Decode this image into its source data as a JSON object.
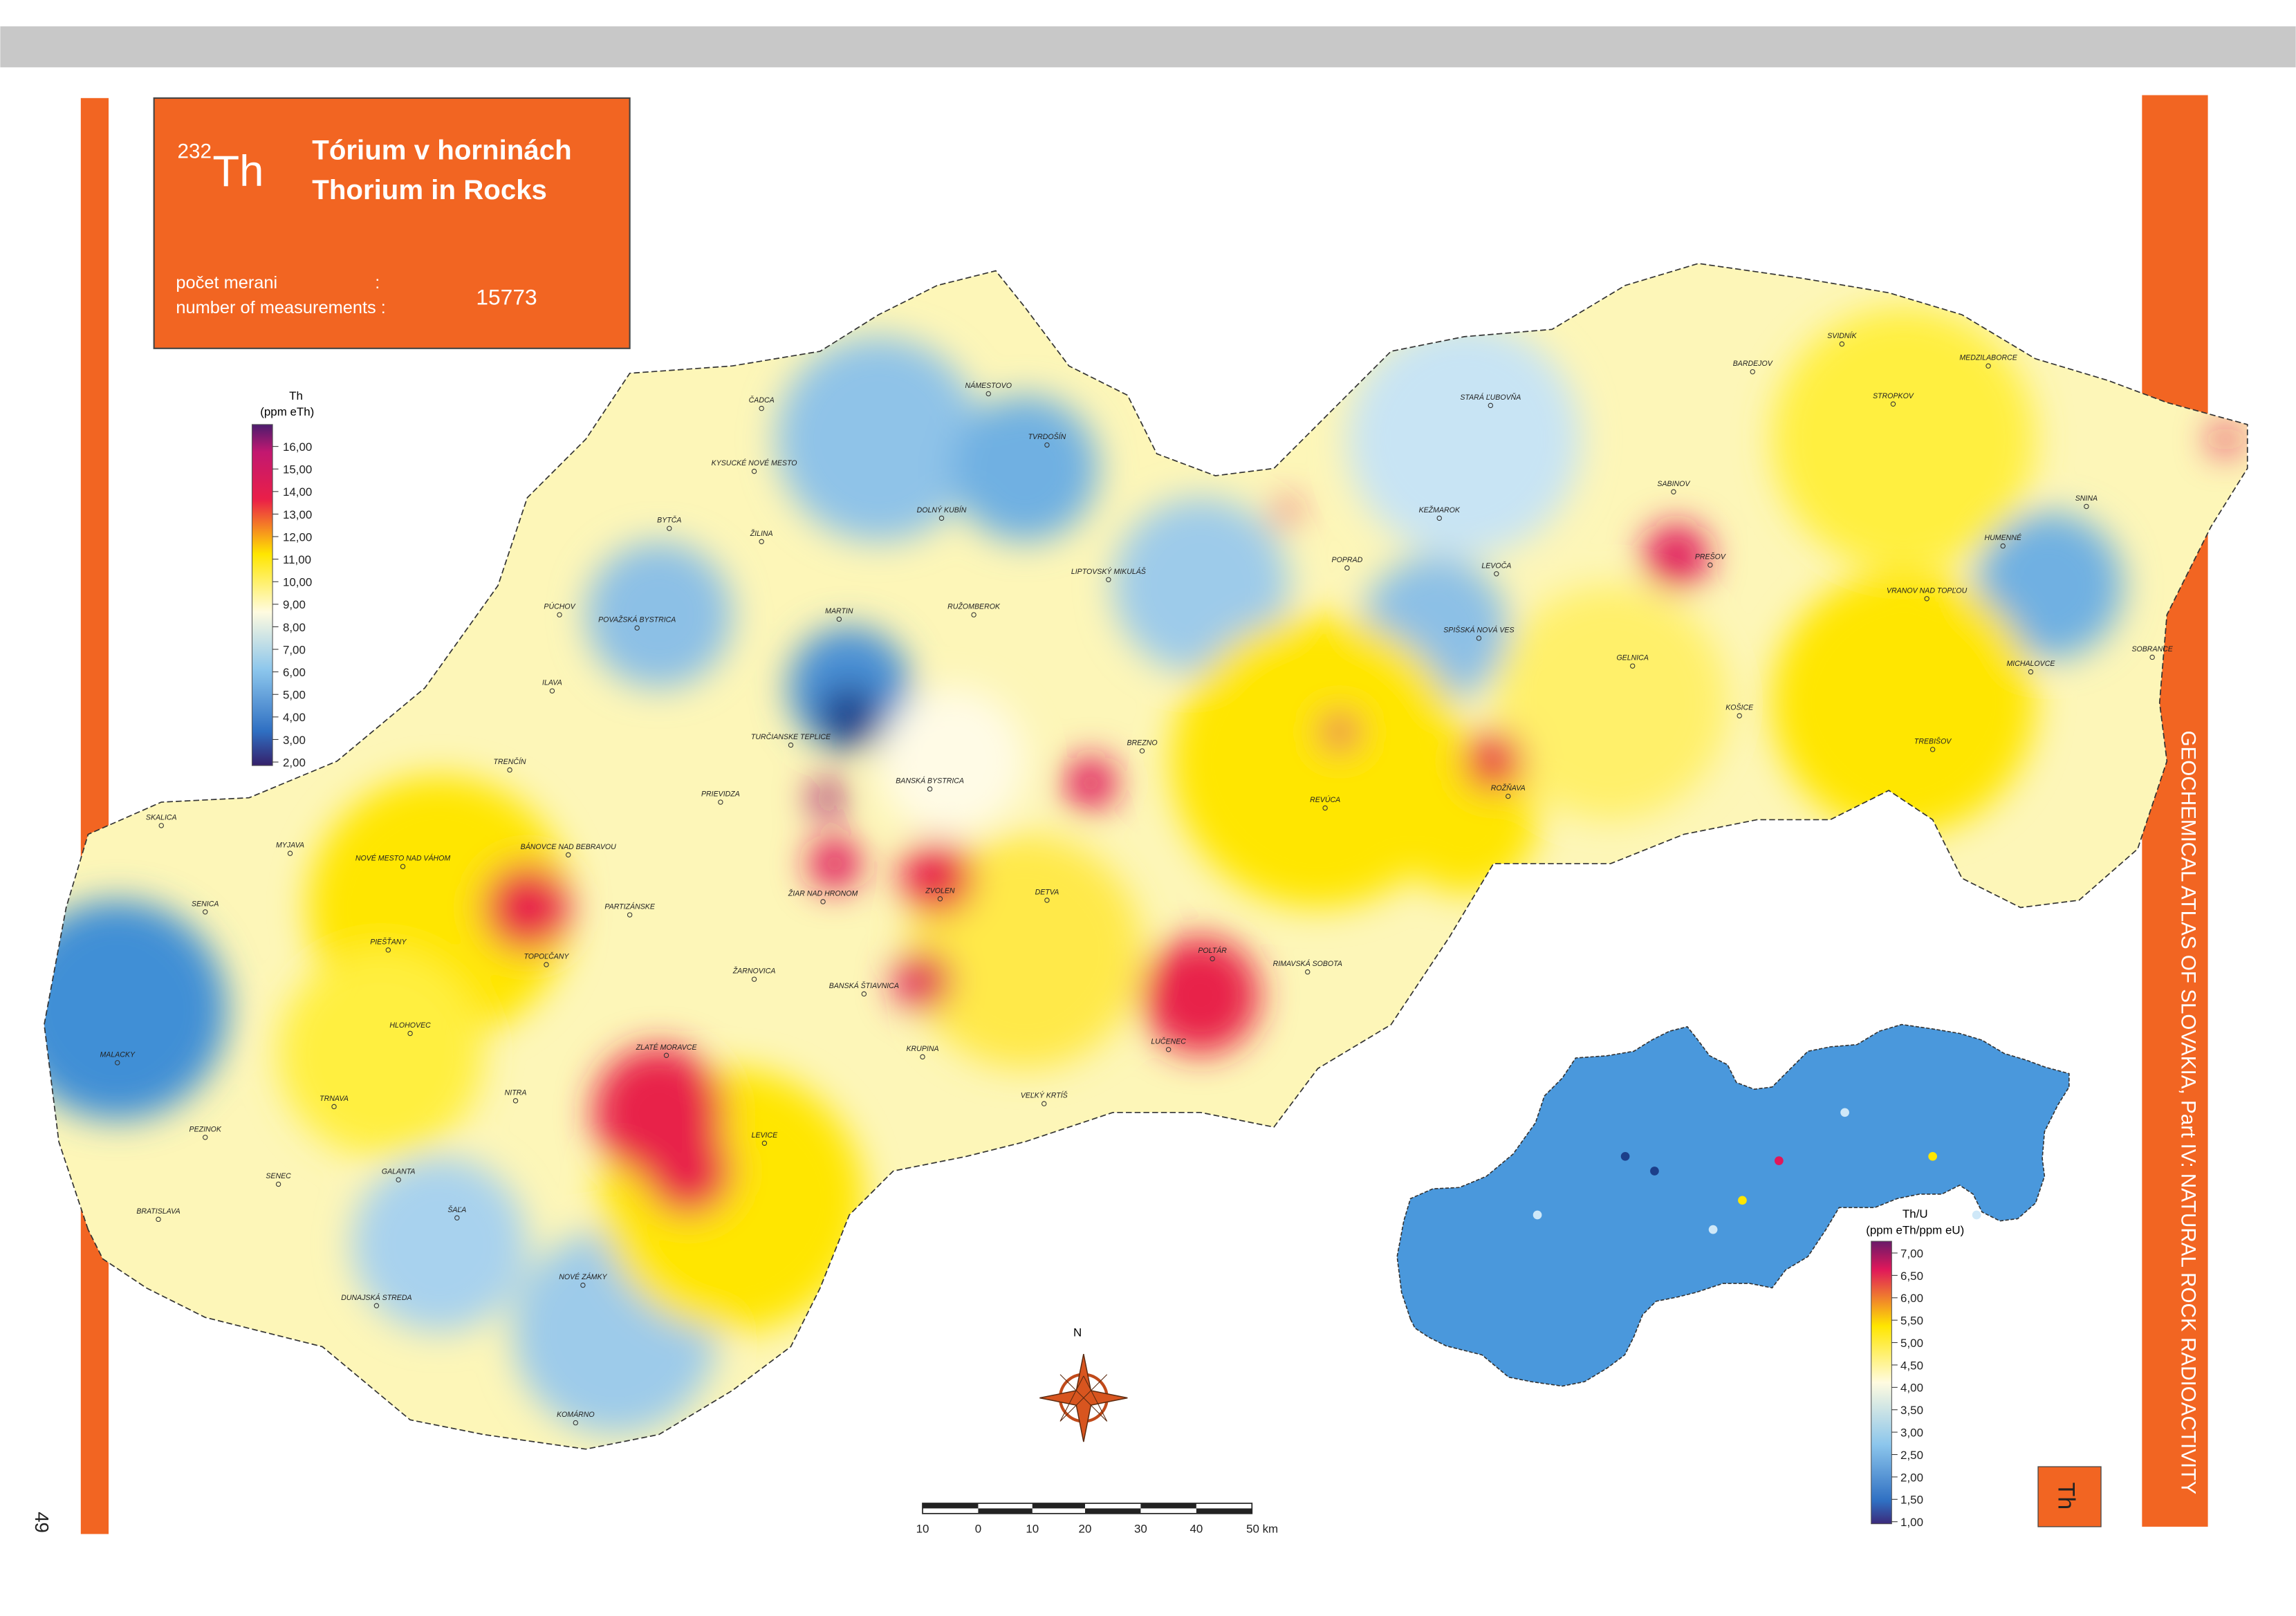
{
  "header": {
    "isotope_mass": "232",
    "element": "Th",
    "title_sk": "Tórium v horninách",
    "title_en": "Thorium in Rocks",
    "count_label_sk": "počet merani",
    "colon": ":",
    "count_label_en": "number of measurements :",
    "measurement_count": "15773"
  },
  "legend": {
    "title": "Th",
    "unit": "(ppm eTh)",
    "ticks": [
      "16,00",
      "15,00",
      "14,00",
      "13,00",
      "12,00",
      "11,00",
      "10,00",
      "9,00",
      "8,00",
      "7,00",
      "6,00",
      "5,00",
      "4,00",
      "3,00",
      "2,00"
    ]
  },
  "inset_legend": {
    "title": "Th/U",
    "unit": "(ppm eTh/ppm eU)",
    "ticks": [
      "7,00",
      "6,50",
      "6,00",
      "5,50",
      "5,00",
      "4,50",
      "4,00",
      "3,50",
      "3,00",
      "2,50",
      "2,00",
      "1,50",
      "1,00"
    ]
  },
  "cities": [
    "ČADCA",
    "NÁMESTOVO",
    "TVRDOŠÍN",
    "KYSUCKÉ NOVÉ MESTO",
    "DOLNÝ KUBÍN",
    "BYTČA",
    "ŽILINA",
    "LIPTOVSKÝ MIKULÁŠ",
    "PÚCHOV",
    "POVAŽSKÁ BYSTRICA",
    "MARTIN",
    "RUŽOMBEROK",
    "ILAVA",
    "TURČIANSKE TEPLICE",
    "TRENČÍN",
    "PRIEVIDZA",
    "BANSKÁ BYSTRICA",
    "BREZNO",
    "SKALICA",
    "MYJAVA",
    "NOVÉ MESTO NAD VÁHOM",
    "BÁNOVCE NAD BEBRAVOU",
    "ŽIAR NAD HRONOM",
    "ZVOLEN",
    "DETVA",
    "SENICA",
    "PARTIZÁNSKE",
    "PIEŠŤANY",
    "TOPOĽČANY",
    "POLTÁR",
    "RIMAVSKÁ SOBOTA",
    "ŽARNOVICA",
    "BANSKÁ ŠTIAVNICA",
    "HLOHOVEC",
    "LUČENEC",
    "ZLATÉ MORAVCE",
    "KRUPINA",
    "MALACKY",
    "TRNAVA",
    "NITRA",
    "VEĽKÝ KRTÍŠ",
    "LEVICE",
    "PEZINOK",
    "SENEC",
    "GALANTA",
    "ŠAĽA",
    "BRATISLAVA",
    "NOVÉ ZÁMKY",
    "DUNAJSKÁ STREDA",
    "KOMÁRNO",
    "STARÁ ĽUBOVŇA",
    "BARDEJOV",
    "SVIDNÍK",
    "MEDZILABORCE",
    "STROPKOV",
    "SABINOV",
    "KEŽMAROK",
    "SNINA",
    "PREŠOV",
    "HUMENNÉ",
    "POPRAD",
    "LEVOČA",
    "VRANOV NAD TOPĽOU",
    "SPIŠSKÁ NOVÁ VES",
    "GELNICA",
    "SOBRANCE",
    "MICHALOVCE",
    "KOŠICE",
    "TREBIŠOV",
    "ROŽŇAVA",
    "REVÚCA"
  ],
  "scale_bar": [
    "10",
    "0",
    "10",
    "20",
    "30",
    "40",
    "50 km"
  ],
  "north": "N",
  "side_text": "GEOCHEMICAL ATLAS OF SLOVAKIA, Part IV: NATURAL ROCK RADIOACTIVITY",
  "corner_label": "Th",
  "page_number": "49"
}
